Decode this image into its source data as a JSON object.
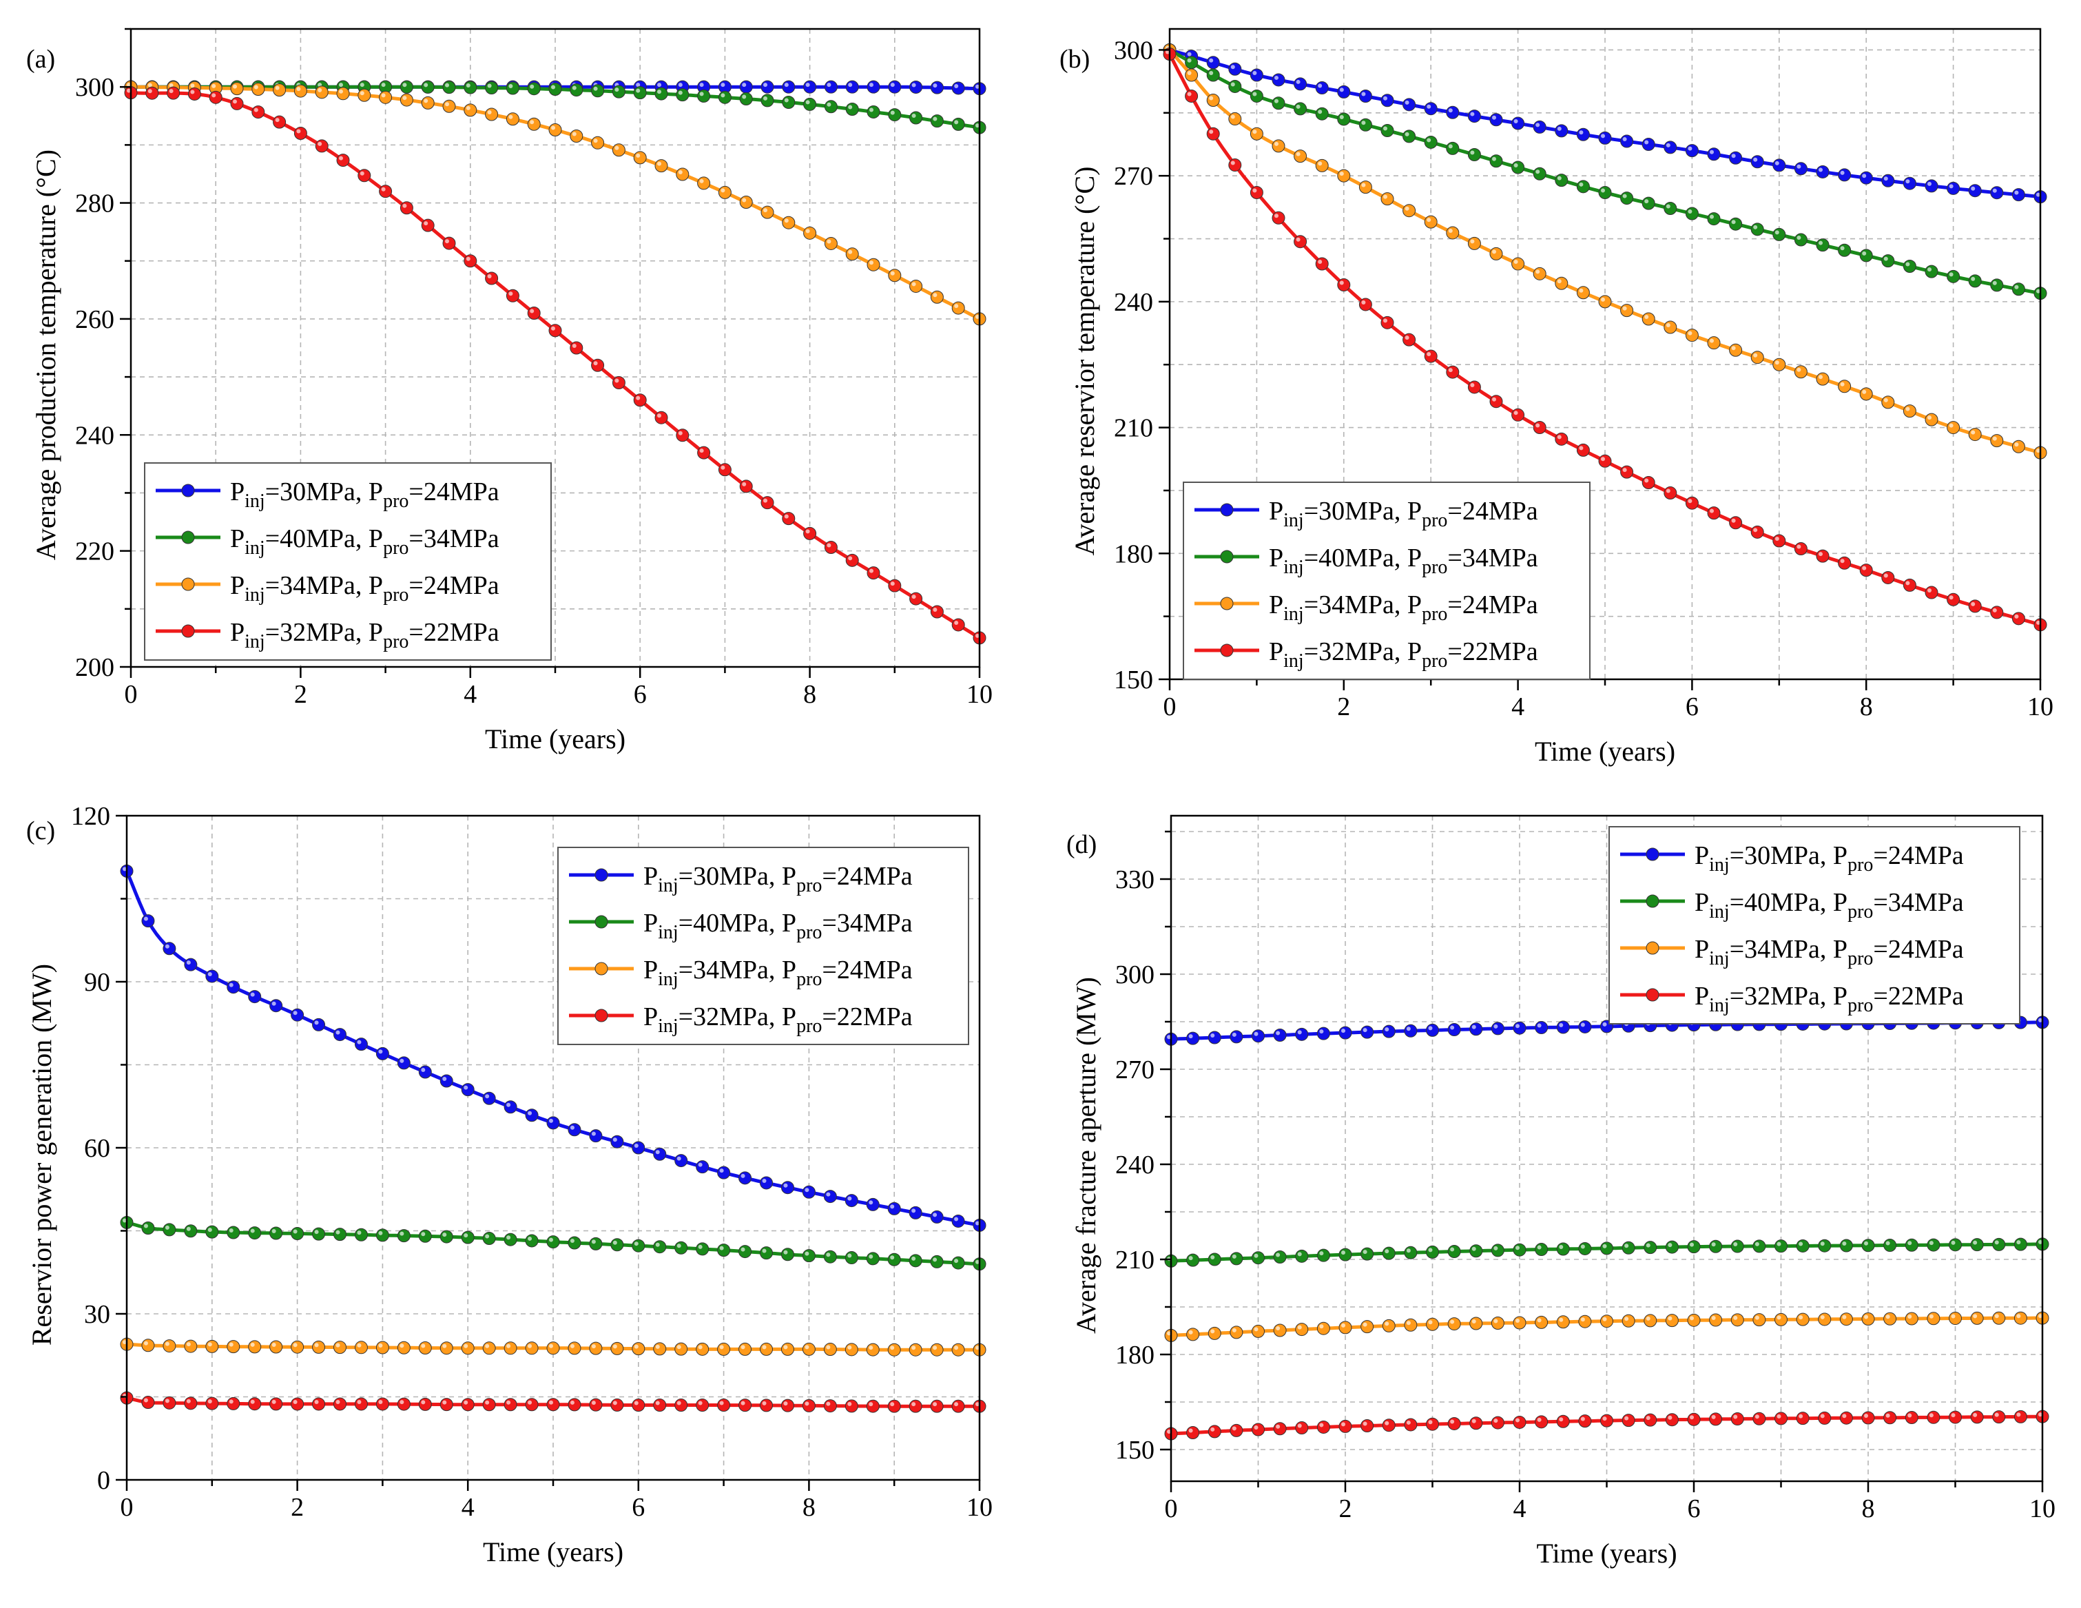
{
  "series_colors": {
    "blue": "#1010e8",
    "green": "#1a8a1a",
    "orange": "#ff9a1a",
    "red": "#ee1a1a"
  },
  "legend_entries": [
    {
      "p_inj": "=30MPa, ",
      "p_pro": "=24MPa",
      "color": "#1010e8"
    },
    {
      "p_inj": "=40MPa, ",
      "p_pro": "=34MPa",
      "color": "#1a8a1a"
    },
    {
      "p_inj": "=34MPa, ",
      "p_pro": "=24MPa",
      "color": "#ff9a1a"
    },
    {
      "p_inj": "=32MPa, ",
      "p_pro": "=22MPa",
      "color": "#ee1a1a"
    }
  ],
  "legend_symbols": {
    "main": "P",
    "sub_inj": "inj",
    "sub_pro": "pro"
  },
  "chart_data": [
    {
      "panel_label": "(a)",
      "type": "line",
      "xlabel": "Time (years)",
      "ylabel": "Average production temperature (°C)",
      "xlim": [
        0,
        10
      ],
      "ylim": [
        200,
        310
      ],
      "xticks": [
        0,
        2,
        4,
        6,
        8,
        10
      ],
      "yticks": [
        200,
        220,
        240,
        260,
        280,
        300
      ],
      "grid": true,
      "legend_position": "bottom-left",
      "x": [
        0,
        1,
        2,
        3,
        4,
        5,
        6,
        7,
        8,
        9,
        10
      ],
      "series": [
        {
          "name": "Pinj=30MPa, Ppro=24MPa",
          "values": [
            300,
            300,
            300,
            300,
            300,
            300,
            300,
            300,
            300,
            300,
            299.7
          ]
        },
        {
          "name": "Pinj=40MPa, Ppro=34MPa",
          "values": [
            300,
            300,
            300,
            300,
            299.9,
            299.6,
            299,
            298.2,
            297,
            295.2,
            293
          ]
        },
        {
          "name": "Pinj=34MPa, Ppro=24MPa",
          "values": [
            300,
            299.8,
            299.3,
            298.2,
            296,
            292.6,
            287.8,
            281.8,
            274.8,
            267.5,
            260
          ]
        },
        {
          "name": "Pinj=32MPa, Ppro=22MPa",
          "values": [
            299,
            298.2,
            292,
            282,
            270,
            258,
            246,
            234,
            223,
            214,
            205
          ]
        }
      ]
    },
    {
      "panel_label": "(b)",
      "type": "line",
      "xlabel": "Time (years)",
      "ylabel": "Average reservior temperature (°C)",
      "xlim": [
        0,
        10
      ],
      "ylim": [
        150,
        305
      ],
      "xticks": [
        0,
        2,
        4,
        6,
        8,
        10
      ],
      "yticks": [
        150,
        180,
        210,
        240,
        270,
        300
      ],
      "grid": true,
      "legend_position": "bottom-left",
      "x": [
        0,
        0.25,
        0.5,
        1,
        2,
        3,
        4,
        5,
        6,
        7,
        8,
        9,
        10
      ],
      "series": [
        {
          "name": "Pinj=30MPa, Ppro=24MPa",
          "values": [
            300,
            298.5,
            297,
            294,
            290,
            286,
            282.5,
            279,
            276,
            272.5,
            269.5,
            267,
            265
          ]
        },
        {
          "name": "Pinj=40MPa, Ppro=34MPa",
          "values": [
            300,
            297,
            294,
            289,
            283.5,
            278,
            272,
            266,
            261,
            256,
            251,
            246,
            242
          ]
        },
        {
          "name": "Pinj=34MPa, Ppro=24MPa",
          "values": [
            300,
            294,
            288,
            280,
            270,
            259,
            249,
            240,
            232,
            225,
            218,
            210,
            204
          ]
        },
        {
          "name": "Pinj=32MPa, Ppro=22MPa",
          "values": [
            299,
            289,
            280,
            266,
            244,
            227,
            213,
            202,
            192,
            183,
            176,
            169,
            163
          ]
        }
      ]
    },
    {
      "panel_label": "(c)",
      "type": "line",
      "xlabel": "Time (years)",
      "ylabel": "Reservior power generation (MW)",
      "xlim": [
        0,
        10
      ],
      "ylim": [
        0,
        120
      ],
      "xticks": [
        0,
        2,
        4,
        6,
        8,
        10
      ],
      "yticks": [
        0,
        30,
        60,
        90,
        120
      ],
      "grid": true,
      "legend_position": "top-right",
      "x": [
        0,
        0.25,
        0.5,
        1,
        2,
        3,
        4,
        5,
        6,
        7,
        8,
        9,
        10
      ],
      "series": [
        {
          "name": "Pinj=30MPa, Ppro=24MPa",
          "values": [
            110,
            101,
            96,
            91,
            84,
            77,
            70.5,
            64.5,
            60,
            55.5,
            52,
            49,
            46
          ]
        },
        {
          "name": "Pinj=40MPa, Ppro=34MPa",
          "values": [
            46.5,
            45.5,
            45.2,
            44.8,
            44.5,
            44.2,
            43.8,
            43,
            42.3,
            41.5,
            40.5,
            39.8,
            39
          ]
        },
        {
          "name": "Pinj=34MPa, Ppro=24MPa",
          "values": [
            24.5,
            24.3,
            24.2,
            24.1,
            24,
            23.9,
            23.8,
            23.8,
            23.7,
            23.6,
            23.6,
            23.5,
            23.5
          ]
        },
        {
          "name": "Pinj=32MPa, Ppro=22MPa",
          "values": [
            14.8,
            14,
            13.9,
            13.8,
            13.7,
            13.7,
            13.6,
            13.6,
            13.5,
            13.5,
            13.4,
            13.3,
            13.3
          ]
        }
      ]
    },
    {
      "panel_label": "(d)",
      "type": "line",
      "xlabel": "Time (years)",
      "ylabel": "Average fracture aperture (MW)",
      "xlim": [
        0,
        10
      ],
      "ylim": [
        140,
        350
      ],
      "xticks": [
        0,
        2,
        4,
        6,
        8,
        10
      ],
      "yticks": [
        150,
        180,
        210,
        240,
        270,
        300,
        330
      ],
      "grid": true,
      "legend_position": "top-right",
      "x": [
        0,
        1,
        2,
        3,
        4,
        5,
        6,
        7,
        8,
        9,
        10
      ],
      "series": [
        {
          "name": "Pinj=30MPa, Ppro=24MPa",
          "values": [
            279.5,
            280.5,
            281.5,
            282.3,
            283,
            283.5,
            284,
            284.2,
            284.4,
            284.6,
            284.8
          ]
        },
        {
          "name": "Pinj=40MPa, Ppro=34MPa",
          "values": [
            209.5,
            210.5,
            211.5,
            212.3,
            213,
            213.5,
            214,
            214.2,
            214.4,
            214.6,
            214.8
          ]
        },
        {
          "name": "Pinj=34MPa, Ppro=24MPa",
          "values": [
            186,
            187.3,
            188.5,
            189.5,
            190,
            190.5,
            190.8,
            191,
            191.2,
            191.4,
            191.5
          ]
        },
        {
          "name": "Pinj=32MPa, Ppro=22MPa",
          "values": [
            155,
            156.3,
            157.3,
            158,
            158.6,
            159.1,
            159.5,
            159.8,
            160,
            160.2,
            160.4
          ]
        }
      ]
    }
  ]
}
